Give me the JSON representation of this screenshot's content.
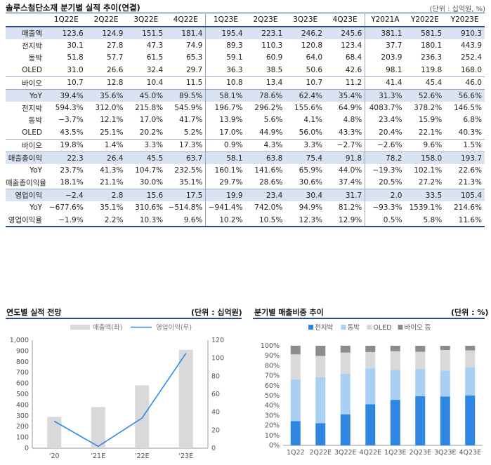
{
  "table": {
    "title": "솔루스첨단소재 분기별 실적 추이(연결)",
    "unit": "(단위 : 십억원, %)",
    "headers": [
      "",
      "1Q22E",
      "2Q22E",
      "3Q22E",
      "4Q22E",
      "1Q23E",
      "2Q23E",
      "3Q23E",
      "4Q23E",
      "Y2021A",
      "Y2022E",
      "Y2023E"
    ],
    "rows": [
      {
        "label": "매출액",
        "values": [
          "123.6",
          "124.9",
          "151.5",
          "181.4",
          "195.4",
          "223.1",
          "246.2",
          "245.6",
          "381.1",
          "581.5",
          "910.3"
        ],
        "hl": true,
        "sep": true
      },
      {
        "label": "전지박",
        "values": [
          "30.1",
          "27.8",
          "47.3",
          "74.9",
          "89.3",
          "110.3",
          "120.8",
          "123.4",
          "37.7",
          "180.1",
          "443.9"
        ]
      },
      {
        "label": "동박",
        "values": [
          "51.8",
          "57.7",
          "61.5",
          "65.3",
          "59.1",
          "60.9",
          "64.0",
          "68.4",
          "203.9",
          "236.3",
          "252.4"
        ]
      },
      {
        "label": "OLED",
        "values": [
          "31.0",
          "26.6",
          "32.4",
          "29.7",
          "36.3",
          "38.5",
          "50.6",
          "42.6",
          "98.1",
          "119.8",
          "168.0"
        ]
      },
      {
        "label": "바이오",
        "values": [
          "10.7",
          "12.8",
          "10.4",
          "11.5",
          "10.8",
          "13.4",
          "10.7",
          "11.2",
          "41.4",
          "45.4",
          "46.0"
        ],
        "sep": true
      },
      {
        "label": "YoY",
        "values": [
          "39.4%",
          "35.6%",
          "45.0%",
          "89.5%",
          "58.1%",
          "78.6%",
          "62.4%",
          "35.4%",
          "31.3%",
          "52.6%",
          "56.6%"
        ],
        "hl": true,
        "sep": true
      },
      {
        "label": "전지박",
        "values": [
          "594.3%",
          "312.0%",
          "215.8%",
          "545.9%",
          "196.7%",
          "296.2%",
          "155.6%",
          "64.9%",
          "4083.7%",
          "378.2%",
          "146.5%"
        ]
      },
      {
        "label": "동박",
        "values": [
          "−3.7%",
          "12.1%",
          "17.0%",
          "41.7%",
          "13.9%",
          "5.6%",
          "4.1%",
          "4.8%",
          "23.4%",
          "15.9%",
          "6.8%"
        ]
      },
      {
        "label": "OLED",
        "values": [
          "43.5%",
          "25.1%",
          "20.2%",
          "5.2%",
          "17.0%",
          "44.9%",
          "56.0%",
          "43.3%",
          "20.4%",
          "22.1%",
          "40.3%"
        ]
      },
      {
        "label": "바이오",
        "values": [
          "19.8%",
          "1.4%",
          "3.3%",
          "17.3%",
          "0.9%",
          "4.3%",
          "3.3%",
          "−2.7%",
          "−2.6%",
          "9.6%",
          "1.5%"
        ],
        "sep": true
      },
      {
        "label": "매출총이익",
        "values": [
          "22.3",
          "26.4",
          "45.5",
          "63.7",
          "58.1",
          "63.8",
          "75.4",
          "91.8",
          "78.2",
          "158.0",
          "193.7"
        ],
        "hl": true,
        "sep": true
      },
      {
        "label": "YoY",
        "values": [
          "23.7%",
          "41.3%",
          "104.7%",
          "232.5%",
          "160.1%",
          "141.6%",
          "65.9%",
          "44.0%",
          "−19.3%",
          "102.1%",
          "22.6%"
        ]
      },
      {
        "label": "매출총이익율",
        "values": [
          "18.1%",
          "21.1%",
          "30.0%",
          "35.1%",
          "29.7%",
          "28.6%",
          "30.6%",
          "37.4%",
          "20.5%",
          "27.2%",
          "21.3%"
        ]
      },
      {
        "label": "영업이익",
        "values": [
          "−2.4",
          "2.8",
          "15.6",
          "17.5",
          "19.9",
          "23.4",
          "30.4",
          "31.7",
          "2.0",
          "33.5",
          "105.4"
        ],
        "hl": true,
        "sep": true
      },
      {
        "label": "YoY",
        "values": [
          "−677.6%",
          "35.1%",
          "310.6%",
          "−514.8%",
          "−941.4%",
          "742.0%",
          "94.9%",
          "81.2%",
          "−93.3%",
          "1539.1%",
          "214.6%"
        ]
      },
      {
        "label": "영업이익율",
        "values": [
          "−1.9%",
          "2.2%",
          "10.3%",
          "9.6%",
          "10.2%",
          "10.5%",
          "12.3%",
          "12.9%",
          "0.5%",
          "5.8%",
          "11.6%"
        ],
        "last": true
      }
    ]
  },
  "chart_data": [
    {
      "type": "bar",
      "title": "연도별 실적 전망",
      "unit": "(단위 : 십억원)",
      "categories": [
        "'20",
        "'21E",
        "'22E",
        "'23E"
      ],
      "series": [
        {
          "name": "매출액(좌)",
          "kind": "bar",
          "axis": "left",
          "color": "#d9d9d9",
          "values": [
            290,
            381.1,
            581.5,
            910.3
          ]
        },
        {
          "name": "영업이익(우)",
          "kind": "line",
          "axis": "right",
          "color": "#2e8ae6",
          "values": [
            30,
            2.0,
            33.5,
            105.4
          ]
        }
      ],
      "ylim_left": [
        0,
        1000
      ],
      "yticks_left": [
        "0",
        "100",
        "200",
        "300",
        "400",
        "500",
        "600",
        "700",
        "800",
        "900",
        "1,000"
      ],
      "ylim_right": [
        0,
        120
      ],
      "yticks_right": [
        "0",
        "20",
        "40",
        "60",
        "80",
        "100",
        "120"
      ],
      "legend_position": "top"
    },
    {
      "type": "bar",
      "stacked": true,
      "title": "분기별 매출비중 추이",
      "unit": "(단위 : %)",
      "categories": [
        "1Q22",
        "2Q22E",
        "3Q22E",
        "4Q22E",
        "1Q23E",
        "2Q23E",
        "3Q23E",
        "4Q23E"
      ],
      "series": [
        {
          "name": "전지박",
          "color": "#2e86e0",
          "values": [
            24.4,
            22.3,
            31.2,
            41.3,
            45.7,
            49.4,
            49.1,
            50.2
          ]
        },
        {
          "name": "동박",
          "color": "#a9cff3",
          "values": [
            41.9,
            46.2,
            40.6,
            36.0,
            30.2,
            27.3,
            26.0,
            27.9
          ]
        },
        {
          "name": "OLED",
          "color": "#d9d9d9",
          "values": [
            25.1,
            21.3,
            21.4,
            16.4,
            18.6,
            17.3,
            20.6,
            17.3
          ]
        },
        {
          "name": "바이오 등",
          "color": "#8c8c8c",
          "values": [
            8.7,
            10.2,
            6.9,
            6.3,
            5.5,
            6.0,
            4.3,
            4.6
          ]
        }
      ],
      "ylim": [
        0,
        100
      ],
      "yticks": [
        "0%",
        "10%",
        "20%",
        "30%",
        "40%",
        "50%",
        "60%",
        "70%",
        "80%",
        "90%",
        "100%"
      ],
      "legend_position": "top"
    }
  ]
}
